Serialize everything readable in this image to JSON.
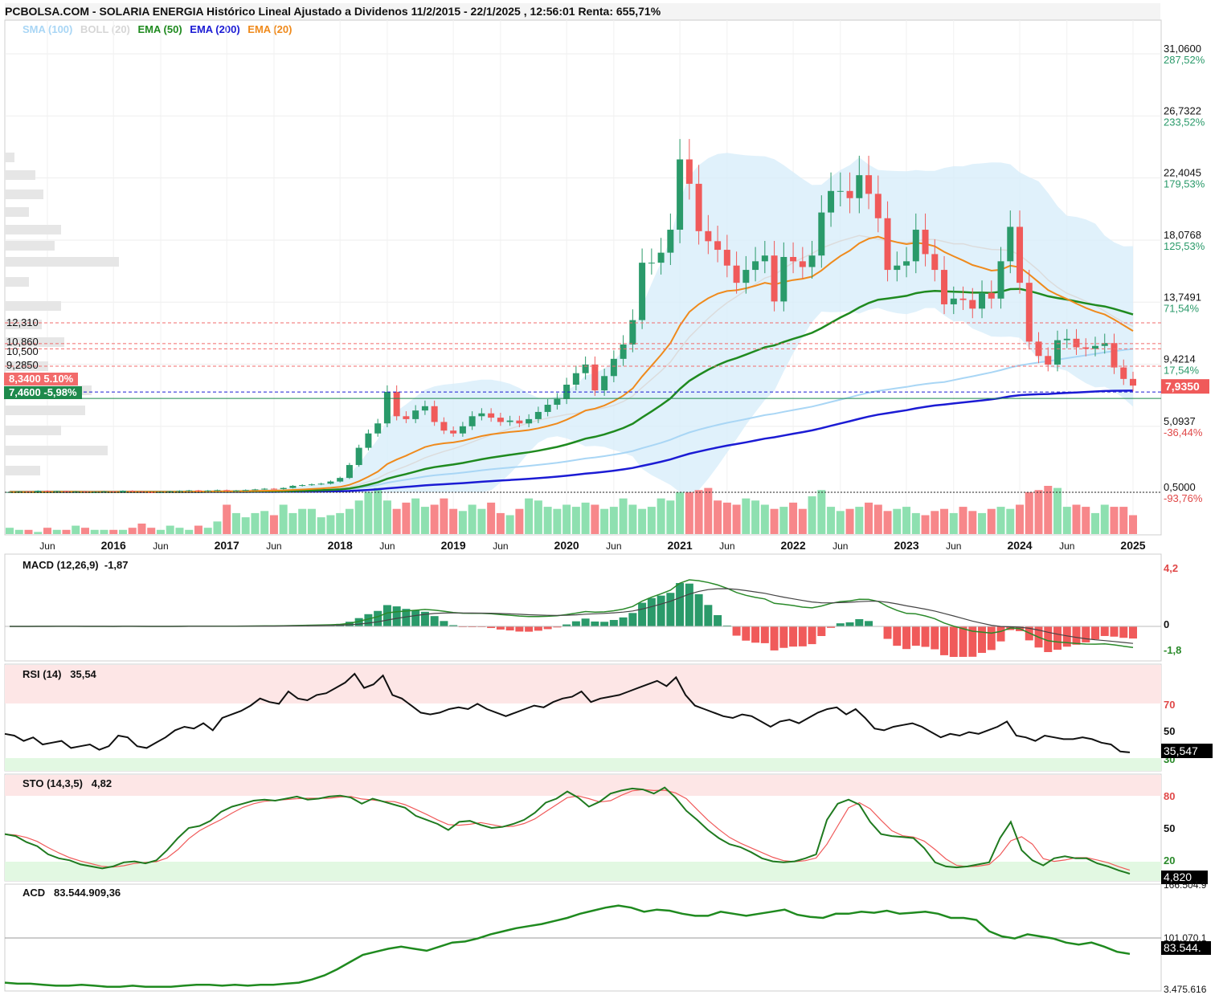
{
  "header": {
    "title": "PCBOLSA.COM - SOLARIA ENERGIA Histórico Lineal Ajustado a Dividenos 11/2/2015 - 22/1/2025 , 12:56:01 Renta: 655,71%"
  },
  "legend": [
    {
      "label": "SMA (100)",
      "color": "#a9d6f5"
    },
    {
      "label": "BOLL (20)",
      "color": "#d6d6d6"
    },
    {
      "label": "EMA (50)",
      "color": "#1f8a1f"
    },
    {
      "label": "EMA (200)",
      "color": "#1b1bd4"
    },
    {
      "label": "EMA (20)",
      "color": "#ef8a1c"
    }
  ],
  "levels": [
    {
      "label": "12,310",
      "value": 12.31
    },
    {
      "label": "10,860",
      "value": 10.86
    },
    {
      "label": "10,500",
      "value": 10.5
    },
    {
      "label": "9,2850",
      "value": 9.285
    }
  ],
  "tags": {
    "red": "8,3400  5.10%",
    "green": "7,4600  -5,98%",
    "last_price": "7,9350",
    "last_value": 7.935
  },
  "chart_data": {
    "type": "candlestick",
    "title": "SOLARIA ENERGIA",
    "y_axis": [
      {
        "price": "31,0600",
        "pct": "287,52%",
        "value": 31.06
      },
      {
        "price": "26,7322",
        "pct": "233,52%",
        "value": 26.7322
      },
      {
        "price": "22,4045",
        "pct": "179,53%",
        "value": 22.4045
      },
      {
        "price": "18,0768",
        "pct": "125,53%",
        "value": 18.0768
      },
      {
        "price": "13,7491",
        "pct": "71,54%",
        "value": 13.7491
      },
      {
        "price": "9,4214",
        "pct": "17,54%",
        "value": 9.4214
      },
      {
        "price": "5,0937",
        "pct": "-36,44%",
        "value": 5.0937
      },
      {
        "price": "0,5000",
        "pct": "-93,76%",
        "value": 0.5
      }
    ],
    "x_labels": [
      {
        "label": "Jun",
        "bold": false,
        "month": 4
      },
      {
        "label": "2016",
        "bold": true,
        "month": 11
      },
      {
        "label": "Jun",
        "bold": false,
        "month": 16
      },
      {
        "label": "2017",
        "bold": true,
        "month": 23
      },
      {
        "label": "Jun",
        "bold": false,
        "month": 28
      },
      {
        "label": "2018",
        "bold": true,
        "month": 35
      },
      {
        "label": "Jun",
        "bold": false,
        "month": 40
      },
      {
        "label": "2019",
        "bold": true,
        "month": 47
      },
      {
        "label": "Jun",
        "bold": false,
        "month": 52
      },
      {
        "label": "2020",
        "bold": true,
        "month": 59
      },
      {
        "label": "Jun",
        "bold": false,
        "month": 64
      },
      {
        "label": "2021",
        "bold": true,
        "month": 71
      },
      {
        "label": "Jun",
        "bold": false,
        "month": 76
      },
      {
        "label": "2022",
        "bold": true,
        "month": 83
      },
      {
        "label": "Jun",
        "bold": false,
        "month": 88
      },
      {
        "label": "2023",
        "bold": true,
        "month": 95
      },
      {
        "label": "Jun",
        "bold": false,
        "month": 100
      },
      {
        "label": "2024",
        "bold": true,
        "month": 107
      },
      {
        "label": "Jun",
        "bold": false,
        "month": 112
      },
      {
        "label": "2025",
        "bold": true,
        "month": 119
      }
    ],
    "closes": [
      0.52,
      0.55,
      0.5,
      0.6,
      0.55,
      0.58,
      0.5,
      0.55,
      0.48,
      0.53,
      0.55,
      0.5,
      0.6,
      0.55,
      0.5,
      0.48,
      0.52,
      0.56,
      0.6,
      0.63,
      0.58,
      0.62,
      0.65,
      0.6,
      0.62,
      0.66,
      0.7,
      0.75,
      0.72,
      0.8,
      0.95,
      1.0,
      1.05,
      1.1,
      1.25,
      1.5,
      2.4,
      3.6,
      4.6,
      5.3,
      7.5,
      5.8,
      5.6,
      6.2,
      6.5,
      5.4,
      4.8,
      4.6,
      5.1,
      5.8,
      6.0,
      5.7,
      5.4,
      5.5,
      5.3,
      5.6,
      6.1,
      6.6,
      7.0,
      8.0,
      8.8,
      9.4,
      7.6,
      8.6,
      9.8,
      10.8,
      12.5,
      16.5,
      16.5,
      17.2,
      18.8,
      23.7,
      22.0,
      18.7,
      18.0,
      17.4,
      16.3,
      15.1,
      16.0,
      16.6,
      17.0,
      13.8,
      16.9,
      16.6,
      16.2,
      17.0,
      20.0,
      21.5,
      21.5,
      21.0,
      22.6,
      21.3,
      19.6,
      16.0,
      16.3,
      16.6,
      18.8,
      17.1,
      16.0,
      13.6,
      14.0,
      13.9,
      13.3,
      14.4,
      14.0,
      16.6,
      19.0,
      15.1,
      11.0,
      10.0,
      9.4,
      11.1,
      11.2,
      10.6,
      10.5,
      10.7,
      10.9,
      9.2,
      8.4,
      7.935
    ],
    "opens": [
      0.5,
      0.52,
      0.55,
      0.5,
      0.6,
      0.55,
      0.58,
      0.5,
      0.55,
      0.48,
      0.53,
      0.55,
      0.5,
      0.6,
      0.55,
      0.5,
      0.48,
      0.52,
      0.56,
      0.6,
      0.63,
      0.58,
      0.62,
      0.65,
      0.6,
      0.62,
      0.66,
      0.7,
      0.75,
      0.72,
      0.8,
      0.95,
      1.0,
      1.05,
      1.1,
      1.25,
      1.5,
      2.4,
      3.6,
      4.6,
      5.3,
      7.5,
      5.8,
      5.6,
      6.2,
      6.5,
      5.4,
      4.8,
      4.6,
      5.1,
      5.8,
      6.0,
      5.7,
      5.4,
      5.5,
      5.3,
      5.6,
      6.1,
      6.6,
      7.0,
      8.0,
      8.8,
      9.4,
      7.6,
      8.6,
      9.8,
      10.8,
      12.5,
      16.5,
      16.5,
      17.2,
      18.8,
      23.7,
      22.0,
      18.7,
      18.0,
      17.4,
      16.3,
      15.1,
      16.0,
      16.6,
      17.0,
      13.8,
      16.9,
      16.6,
      16.2,
      17.0,
      20.0,
      21.5,
      21.5,
      21.0,
      22.6,
      21.3,
      19.6,
      16.0,
      16.3,
      16.6,
      18.8,
      17.1,
      16.0,
      13.6,
      14.0,
      13.9,
      13.3,
      14.4,
      14.0,
      16.6,
      19.0,
      15.1,
      11.0,
      10.0,
      9.4,
      11.1,
      11.2,
      10.6,
      10.5,
      10.7,
      10.9,
      9.2,
      8.4
    ],
    "volumes": [
      3,
      2,
      2,
      1,
      3,
      2,
      2,
      4,
      3,
      2,
      2,
      2,
      2,
      3,
      5,
      3,
      2,
      4,
      3,
      2,
      4,
      3,
      6,
      14,
      10,
      8,
      10,
      11,
      9,
      14,
      10,
      12,
      12,
      8,
      9,
      10,
      12,
      16,
      20,
      22,
      16,
      12,
      15,
      17,
      13,
      14,
      17,
      12,
      11,
      14,
      12,
      15,
      10,
      9,
      12,
      17,
      16,
      13,
      12,
      14,
      13,
      15,
      14,
      12,
      13,
      17,
      14,
      12,
      13,
      17,
      16,
      20,
      20,
      21,
      22,
      16,
      15,
      14,
      17,
      16,
      14,
      12,
      13,
      15,
      12,
      18,
      21,
      13,
      11,
      12,
      13,
      15,
      14,
      11,
      12,
      13,
      10,
      9,
      11,
      12,
      10,
      13,
      11,
      10,
      12,
      13,
      12,
      14,
      20,
      21,
      23,
      22,
      13,
      14,
      13,
      10,
      14,
      13,
      13,
      9
    ],
    "indicators": {
      "macd": {
        "label": "MACD (12,26,9)",
        "value": "-1,87",
        "axis": [
          "4,2",
          "0",
          "-1,8"
        ]
      },
      "rsi": {
        "label": "RSI (14)",
        "value": "35,54",
        "last": "35,547",
        "axis": [
          "70",
          "50",
          "30"
        ]
      },
      "sto": {
        "label": "STO (14,3,5)",
        "value": "4,82",
        "last": "4,820",
        "axis": [
          "80",
          "50",
          "20"
        ]
      },
      "acd": {
        "label": "ACD",
        "value": "83.544.909,36",
        "last": "83.544.",
        "axis": [
          "166.504.9",
          "101.070.1",
          "3.475.616"
        ]
      }
    },
    "rsi_series": [
      46,
      45,
      42,
      44,
      40,
      41,
      42,
      38,
      39,
      40,
      37,
      39,
      45,
      44,
      39,
      38,
      41,
      44,
      48,
      50,
      49,
      52,
      48,
      55,
      57,
      59,
      62,
      66,
      64,
      63,
      70,
      66,
      65,
      68,
      69,
      72,
      75,
      80,
      72,
      74,
      79,
      68,
      66,
      62,
      58,
      57,
      58,
      60,
      61,
      60,
      63,
      60,
      58,
      56,
      58,
      60,
      62,
      61,
      64,
      66,
      67,
      70,
      64,
      66,
      67,
      68,
      70,
      72,
      74,
      76,
      73,
      78,
      68,
      62,
      60,
      58,
      56,
      55,
      57,
      56,
      53,
      50,
      53,
      54,
      52,
      55,
      58,
      60,
      61,
      57,
      60,
      55,
      49,
      48,
      50,
      51,
      52,
      50,
      47,
      44,
      46,
      45,
      47,
      46,
      48,
      50,
      53,
      45,
      44,
      42,
      45,
      44,
      43,
      43,
      44,
      43,
      41,
      40,
      36,
      35.5
    ],
    "sto_series": [
      44,
      42,
      36,
      32,
      24,
      20,
      18,
      14,
      12,
      10,
      12,
      16,
      17,
      15,
      18,
      28,
      40,
      50,
      52,
      57,
      66,
      71,
      74,
      77,
      78,
      77,
      79,
      81,
      78,
      79,
      81,
      82,
      80,
      74,
      79,
      76,
      73,
      70,
      62,
      58,
      54,
      48,
      56,
      57,
      53,
      50,
      51,
      54,
      58,
      65,
      75,
      79,
      86,
      80,
      71,
      76,
      84,
      87,
      89,
      88,
      84,
      90,
      80,
      67,
      58,
      48,
      40,
      34,
      31,
      26,
      20,
      17,
      16,
      17,
      20,
      24,
      58,
      74,
      78,
      73,
      56,
      44,
      42,
      41,
      40,
      30,
      16,
      12,
      11,
      12,
      14,
      16,
      40,
      56,
      28,
      18,
      13,
      20,
      22,
      20,
      20,
      15,
      12,
      8,
      4.8
    ],
    "acd_series": [
      5,
      4,
      4,
      3,
      2,
      2,
      3,
      2,
      1,
      1,
      2,
      1,
      1,
      1,
      2,
      3,
      3,
      2,
      3,
      2,
      3,
      3,
      4,
      5,
      8,
      12,
      18,
      25,
      32,
      35,
      38,
      40,
      38,
      36,
      40,
      44,
      45,
      48,
      52,
      55,
      58,
      60,
      62,
      65,
      68,
      72,
      75,
      78,
      80,
      78,
      74,
      76,
      75,
      72,
      70,
      70,
      74,
      72,
      70,
      72,
      74,
      76,
      71,
      69,
      68,
      72,
      72,
      74,
      73,
      75,
      72,
      73,
      74,
      72,
      68,
      68,
      66,
      55,
      50,
      48,
      52,
      50,
      48,
      44,
      42,
      44,
      40,
      35,
      33
    ]
  }
}
